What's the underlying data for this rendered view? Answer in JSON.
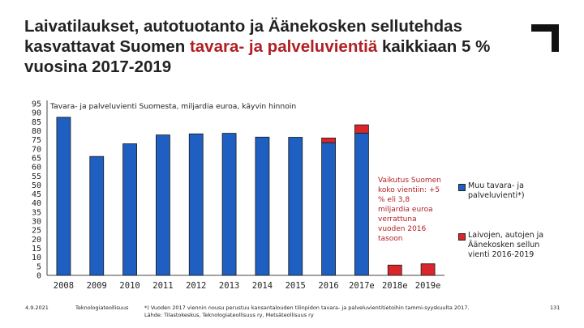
{
  "slide": {
    "title_part1": "Laivatilaukset, autotuotanto ja Äänekosken sellutehdas kasvattavat Suomen ",
    "title_highlight": "tavara- ja palveluvientiä",
    "title_part2": " kaikkiaan 5 % vuosina 2017-2019",
    "highlight_color": "#b11f24",
    "footer_date": "4.9.2021",
    "footer_org": "Teknologiateollisuus",
    "footer_note": "*) Vuoden 2017 viennin nousu perustuu kansantalouden tilinpidon tavara- ja palveluvientitietoihin tammi-syyskuulta 2017.",
    "footer_source": "Lähde: Tilastokeskus, Teknologiateollisuus ry, Metsäteollisuus ry",
    "page_number": "131"
  },
  "chart_data": {
    "type": "bar",
    "stacked": true,
    "subtitle": "Tavara- ja palveluvienti Suomesta, miljardia euroa, käyvin hinnoin",
    "categories": [
      "2008",
      "2009",
      "2010",
      "2011",
      "2012",
      "2013",
      "2014",
      "2015",
      "2016",
      "2017e",
      "2018e",
      "2019e"
    ],
    "series": [
      {
        "name": "Muu tavara- ja palveluvienti*)",
        "color": "#1e5fc1",
        "values": [
          87.5,
          65.8,
          72.8,
          77.7,
          78.3,
          78.6,
          76.5,
          76.4,
          73.4,
          78.7,
          0,
          0
        ]
      },
      {
        "name": "Laivojen, autojen ja Äänekosken sellun vienti 2016-2019",
        "color": "#d9262a",
        "values": [
          0,
          0,
          0,
          0,
          0,
          0,
          0,
          0,
          2.6,
          4.6,
          5.7,
          6.4
        ]
      }
    ],
    "ylim": [
      0,
      95
    ],
    "yticks": [
      0,
      5,
      10,
      15,
      20,
      25,
      30,
      35,
      40,
      45,
      50,
      55,
      60,
      65,
      70,
      75,
      80,
      85,
      90,
      95
    ],
    "annotation": "Vaikutus Suomen koko vientiin: +5 % eli 3,8 miljardia euroa verrattuna vuoden 2016 tasoon",
    "legend_position": "right",
    "grid": false
  }
}
